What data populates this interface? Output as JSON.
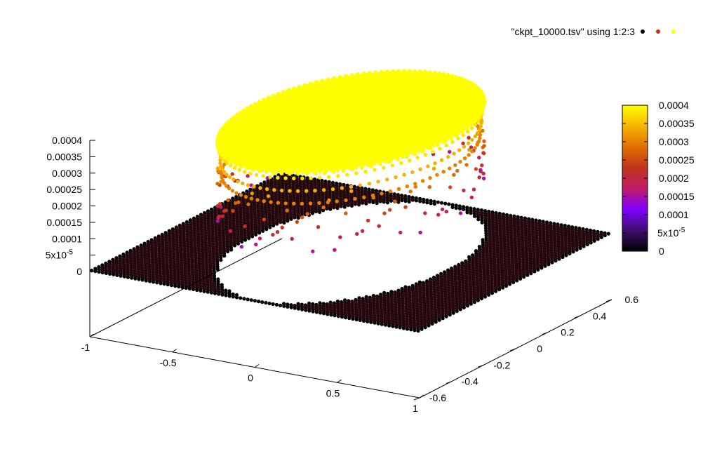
{
  "chart_data": {
    "type": "scatter",
    "title": "",
    "legend": {
      "label": "\"ckpt_10000.tsv\" using 1:2:3",
      "placement": "top-right",
      "swatch_colors": [
        "#000000",
        "#c0341c",
        "#ffff00"
      ]
    },
    "x_axis": {
      "label": "",
      "range": [
        -1,
        1
      ],
      "ticks": [
        {
          "v": -1,
          "label": "-1"
        },
        {
          "v": -0.5,
          "label": "-0.5"
        },
        {
          "v": 0,
          "label": "0"
        },
        {
          "v": 0.5,
          "label": "0.5"
        },
        {
          "v": 1,
          "label": "1"
        }
      ]
    },
    "y_axis": {
      "label": "",
      "range": [
        -0.6,
        0.6
      ],
      "ticks": [
        {
          "v": -0.6,
          "label": "-0.6"
        },
        {
          "v": -0.4,
          "label": "-0.4"
        },
        {
          "v": -0.2,
          "label": "-0.2"
        },
        {
          "v": 0,
          "label": "0"
        },
        {
          "v": 0.2,
          "label": "0.2"
        },
        {
          "v": 0.4,
          "label": "0.4"
        },
        {
          "v": 0.6,
          "label": "0.6"
        }
      ]
    },
    "z_axis": {
      "label": "",
      "range": [
        0,
        0.0004
      ],
      "ticks": [
        {
          "v": 0,
          "label": "0"
        },
        {
          "v": 5e-05,
          "label": "5x10",
          "exp": "-5"
        },
        {
          "v": 0.0001,
          "label": "0.0001"
        },
        {
          "v": 0.00015,
          "label": "0.00015"
        },
        {
          "v": 0.0002,
          "label": "0.0002"
        },
        {
          "v": 0.00025,
          "label": "0.00025"
        },
        {
          "v": 0.0003,
          "label": "0.0003"
        },
        {
          "v": 0.00035,
          "label": "0.00035"
        },
        {
          "v": 0.0004,
          "label": "0.0004"
        }
      ]
    },
    "colorbar": {
      "range": [
        0,
        0.0004
      ],
      "palette": [
        "#000000",
        "#3c0f6e",
        "#7f00ff",
        "#c01b68",
        "#c0341c",
        "#e06f00",
        "#f5b400",
        "#ffff00"
      ],
      "ticks": [
        {
          "v": 0,
          "label": "0"
        },
        {
          "v": 5e-05,
          "label": "5x10",
          "exp": "-5"
        },
        {
          "v": 0.0001,
          "label": "0.0001"
        },
        {
          "v": 0.00015,
          "label": "0.00015"
        },
        {
          "v": 0.0002,
          "label": "0.0002"
        },
        {
          "v": 0.00025,
          "label": "0.00025"
        },
        {
          "v": 0.0003,
          "label": "0.0003"
        },
        {
          "v": 0.00035,
          "label": "0.00035"
        },
        {
          "v": 0.0004,
          "label": "0.0004"
        }
      ]
    },
    "series": [
      {
        "description_of_data": "points at z=0 outside the disc of radius 0.58 over the square [-1,1]x[-0.6,0.6]",
        "z_value": 0,
        "domain_x": [
          -1,
          1
        ],
        "domain_y": [
          -0.6,
          0.6
        ]
      },
      {
        "description_of_data": "disc of radius 0.58 at z=0.0004 plus scattered rim points at lower z",
        "disc_radius": 0.58,
        "disc_z": 0.0004,
        "rim_levels_z": [
          0.0003,
          0.00034,
          0.00038,
          0.000395
        ],
        "mid_rim_z": [
          0.00018,
          0.00022,
          0.00026,
          0.0003
        ]
      }
    ]
  }
}
